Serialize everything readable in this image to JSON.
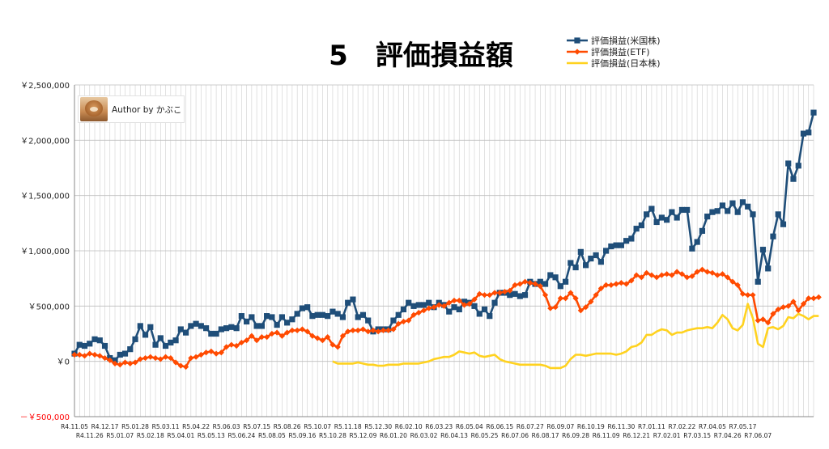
{
  "chart_data": {
    "type": "line",
    "title": "5　評価損益額",
    "legend_position": "top-right",
    "grid": true,
    "ylim": [
      -500000,
      2500000
    ],
    "ytick_values": [
      -500000,
      0,
      500000,
      1000000,
      1500000,
      2000000,
      2500000
    ],
    "ytick_labels": [
      "－￥500,000",
      "￥0",
      "￥500,000",
      "￥1,000,000",
      "￥1,500,000",
      "￥2,000,000",
      "￥2,500,000"
    ],
    "x_labels": [
      "R4.11.05",
      "R4.11.26",
      "R4.12.17",
      "R5.01.07",
      "R5.01.28",
      "R5.02.18",
      "R5.03.11",
      "R5.04.01",
      "R5.04.22",
      "R5.05.13",
      "R5.06.03",
      "R5.06.24",
      "R5.07.15",
      "R5.08.05",
      "R5.08.26",
      "R5.09.16",
      "R5.10.07",
      "R5.10.28",
      "R5.11.18",
      "R5.12.09",
      "R5.12.30",
      "R6.01.20",
      "R6.02.10",
      "R6.03.02",
      "R6.03.23",
      "R6.04.13",
      "R6.05.04",
      "R6.05.25",
      "R6.06.15",
      "R6.07.06",
      "R6.07.27",
      "R6.08.17",
      "R6.09.07",
      "R6.09.28",
      "R6.10.19",
      "R6.11.09",
      "R6.11.30",
      "R6.12.21",
      "R7.01.11",
      "R7.02.01",
      "R7.02.22",
      "R7.03.15",
      "R7.04.05",
      "R7.04.26",
      "R7.05.17",
      "R7.06.07"
    ],
    "series": [
      {
        "name": "評価損益(米国株)",
        "color": "#1f4e79",
        "marker": "square",
        "start_index": 0,
        "values": [
          70000,
          150000,
          140000,
          160000,
          200000,
          190000,
          140000,
          30000,
          10000,
          60000,
          70000,
          110000,
          200000,
          320000,
          240000,
          310000,
          150000,
          210000,
          140000,
          170000,
          190000,
          290000,
          260000,
          320000,
          340000,
          320000,
          300000,
          250000,
          250000,
          290000,
          300000,
          310000,
          300000,
          410000,
          360000,
          400000,
          320000,
          320000,
          410000,
          400000,
          330000,
          400000,
          350000,
          380000,
          430000,
          480000,
          490000,
          410000,
          420000,
          420000,
          410000,
          450000,
          430000,
          400000,
          530000,
          560000,
          400000,
          420000,
          370000,
          270000,
          290000,
          290000,
          290000,
          370000,
          420000,
          470000,
          530000,
          500000,
          510000,
          510000,
          530000,
          490000,
          530000,
          510000,
          450000,
          490000,
          470000,
          540000,
          530000,
          500000,
          430000,
          470000,
          410000,
          530000,
          620000,
          620000,
          600000,
          610000,
          590000,
          600000,
          720000,
          700000,
          720000,
          700000,
          780000,
          760000,
          680000,
          720000,
          890000,
          850000,
          990000,
          870000,
          930000,
          960000,
          900000,
          1000000,
          1040000,
          1050000,
          1050000,
          1090000,
          1110000,
          1200000,
          1230000,
          1330000,
          1380000,
          1260000,
          1300000,
          1280000,
          1350000,
          1300000,
          1370000,
          1370000,
          1020000,
          1080000,
          1180000,
          1310000,
          1350000,
          1360000,
          1410000,
          1360000,
          1430000,
          1350000,
          1440000,
          1400000,
          1330000,
          720000,
          1010000,
          840000,
          1130000,
          1330000,
          1240000,
          1790000,
          1650000,
          1770000,
          2060000,
          2070000,
          2250000
        ]
      },
      {
        "name": "評価損益(ETF)",
        "color": "#ff4a00",
        "marker": "diamond",
        "start_index": 0,
        "values": [
          60000,
          60000,
          50000,
          70000,
          60000,
          50000,
          30000,
          10000,
          -20000,
          -30000,
          -10000,
          -20000,
          -10000,
          20000,
          30000,
          40000,
          30000,
          20000,
          40000,
          30000,
          -10000,
          -40000,
          -50000,
          30000,
          40000,
          60000,
          80000,
          90000,
          70000,
          80000,
          130000,
          150000,
          140000,
          170000,
          190000,
          230000,
          190000,
          220000,
          220000,
          250000,
          260000,
          230000,
          260000,
          280000,
          280000,
          290000,
          270000,
          230000,
          210000,
          190000,
          220000,
          150000,
          130000,
          230000,
          270000,
          280000,
          280000,
          290000,
          270000,
          280000,
          270000,
          280000,
          280000,
          290000,
          340000,
          360000,
          370000,
          420000,
          440000,
          460000,
          480000,
          490000,
          510000,
          500000,
          530000,
          550000,
          550000,
          510000,
          520000,
          560000,
          610000,
          600000,
          600000,
          620000,
          620000,
          630000,
          640000,
          690000,
          700000,
          720000,
          710000,
          700000,
          680000,
          600000,
          480000,
          490000,
          570000,
          570000,
          620000,
          570000,
          460000,
          490000,
          540000,
          600000,
          660000,
          690000,
          690000,
          700000,
          710000,
          700000,
          730000,
          780000,
          760000,
          800000,
          780000,
          760000,
          780000,
          790000,
          780000,
          810000,
          790000,
          760000,
          770000,
          810000,
          830000,
          810000,
          800000,
          780000,
          790000,
          760000,
          720000,
          690000,
          610000,
          600000,
          600000,
          370000,
          380000,
          350000,
          430000,
          470000,
          490000,
          500000,
          540000,
          460000,
          520000,
          570000,
          570000,
          580000
        ]
      },
      {
        "name": "評価損益(日本株)",
        "color": "#ffd21f",
        "marker": "none",
        "start_index": 51,
        "values": [
          0,
          -20000,
          -20000,
          -20000,
          -20000,
          -10000,
          -20000,
          -30000,
          -30000,
          -40000,
          -40000,
          -30000,
          -30000,
          -30000,
          -20000,
          -20000,
          -20000,
          -20000,
          -10000,
          0,
          20000,
          30000,
          40000,
          40000,
          60000,
          90000,
          80000,
          70000,
          80000,
          50000,
          40000,
          50000,
          60000,
          20000,
          0,
          -10000,
          -20000,
          -30000,
          -30000,
          -30000,
          -30000,
          -30000,
          -40000,
          -60000,
          -60000,
          -60000,
          -40000,
          20000,
          60000,
          60000,
          50000,
          60000,
          70000,
          70000,
          70000,
          70000,
          60000,
          70000,
          90000,
          130000,
          140000,
          170000,
          240000,
          240000,
          270000,
          290000,
          280000,
          240000,
          260000,
          260000,
          280000,
          290000,
          300000,
          300000,
          310000,
          300000,
          350000,
          420000,
          380000,
          300000,
          280000,
          330000,
          520000,
          390000,
          160000,
          130000,
          300000,
          310000,
          290000,
          320000,
          400000,
          390000,
          430000,
          410000,
          380000,
          410000,
          410000
        ]
      }
    ]
  },
  "author_badge": {
    "label": "Author by かぶこ"
  }
}
